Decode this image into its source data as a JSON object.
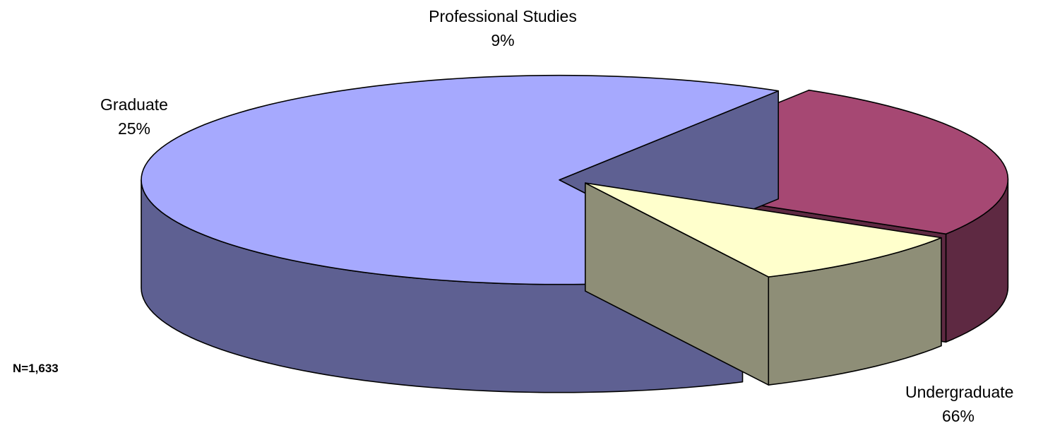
{
  "chart_data": {
    "type": "pie",
    "title": "",
    "categories": [
      "Undergraduate",
      "Graduate",
      "Professional Studies"
    ],
    "values": [
      66,
      25,
      9
    ],
    "value_labels": [
      "66%",
      "25%",
      "9%"
    ],
    "unit": "%",
    "three_d": true,
    "exploded": true,
    "legend": "none",
    "colors": {
      "Undergraduate": {
        "top": "#a6a9fe",
        "side": "#5e6092"
      },
      "Graduate": {
        "top": "#a64873",
        "side": "#5e2942"
      },
      "Professional Studies": {
        "top": "#ffffcc",
        "side": "#8e8e77"
      }
    },
    "annotation": "N=1,633"
  }
}
